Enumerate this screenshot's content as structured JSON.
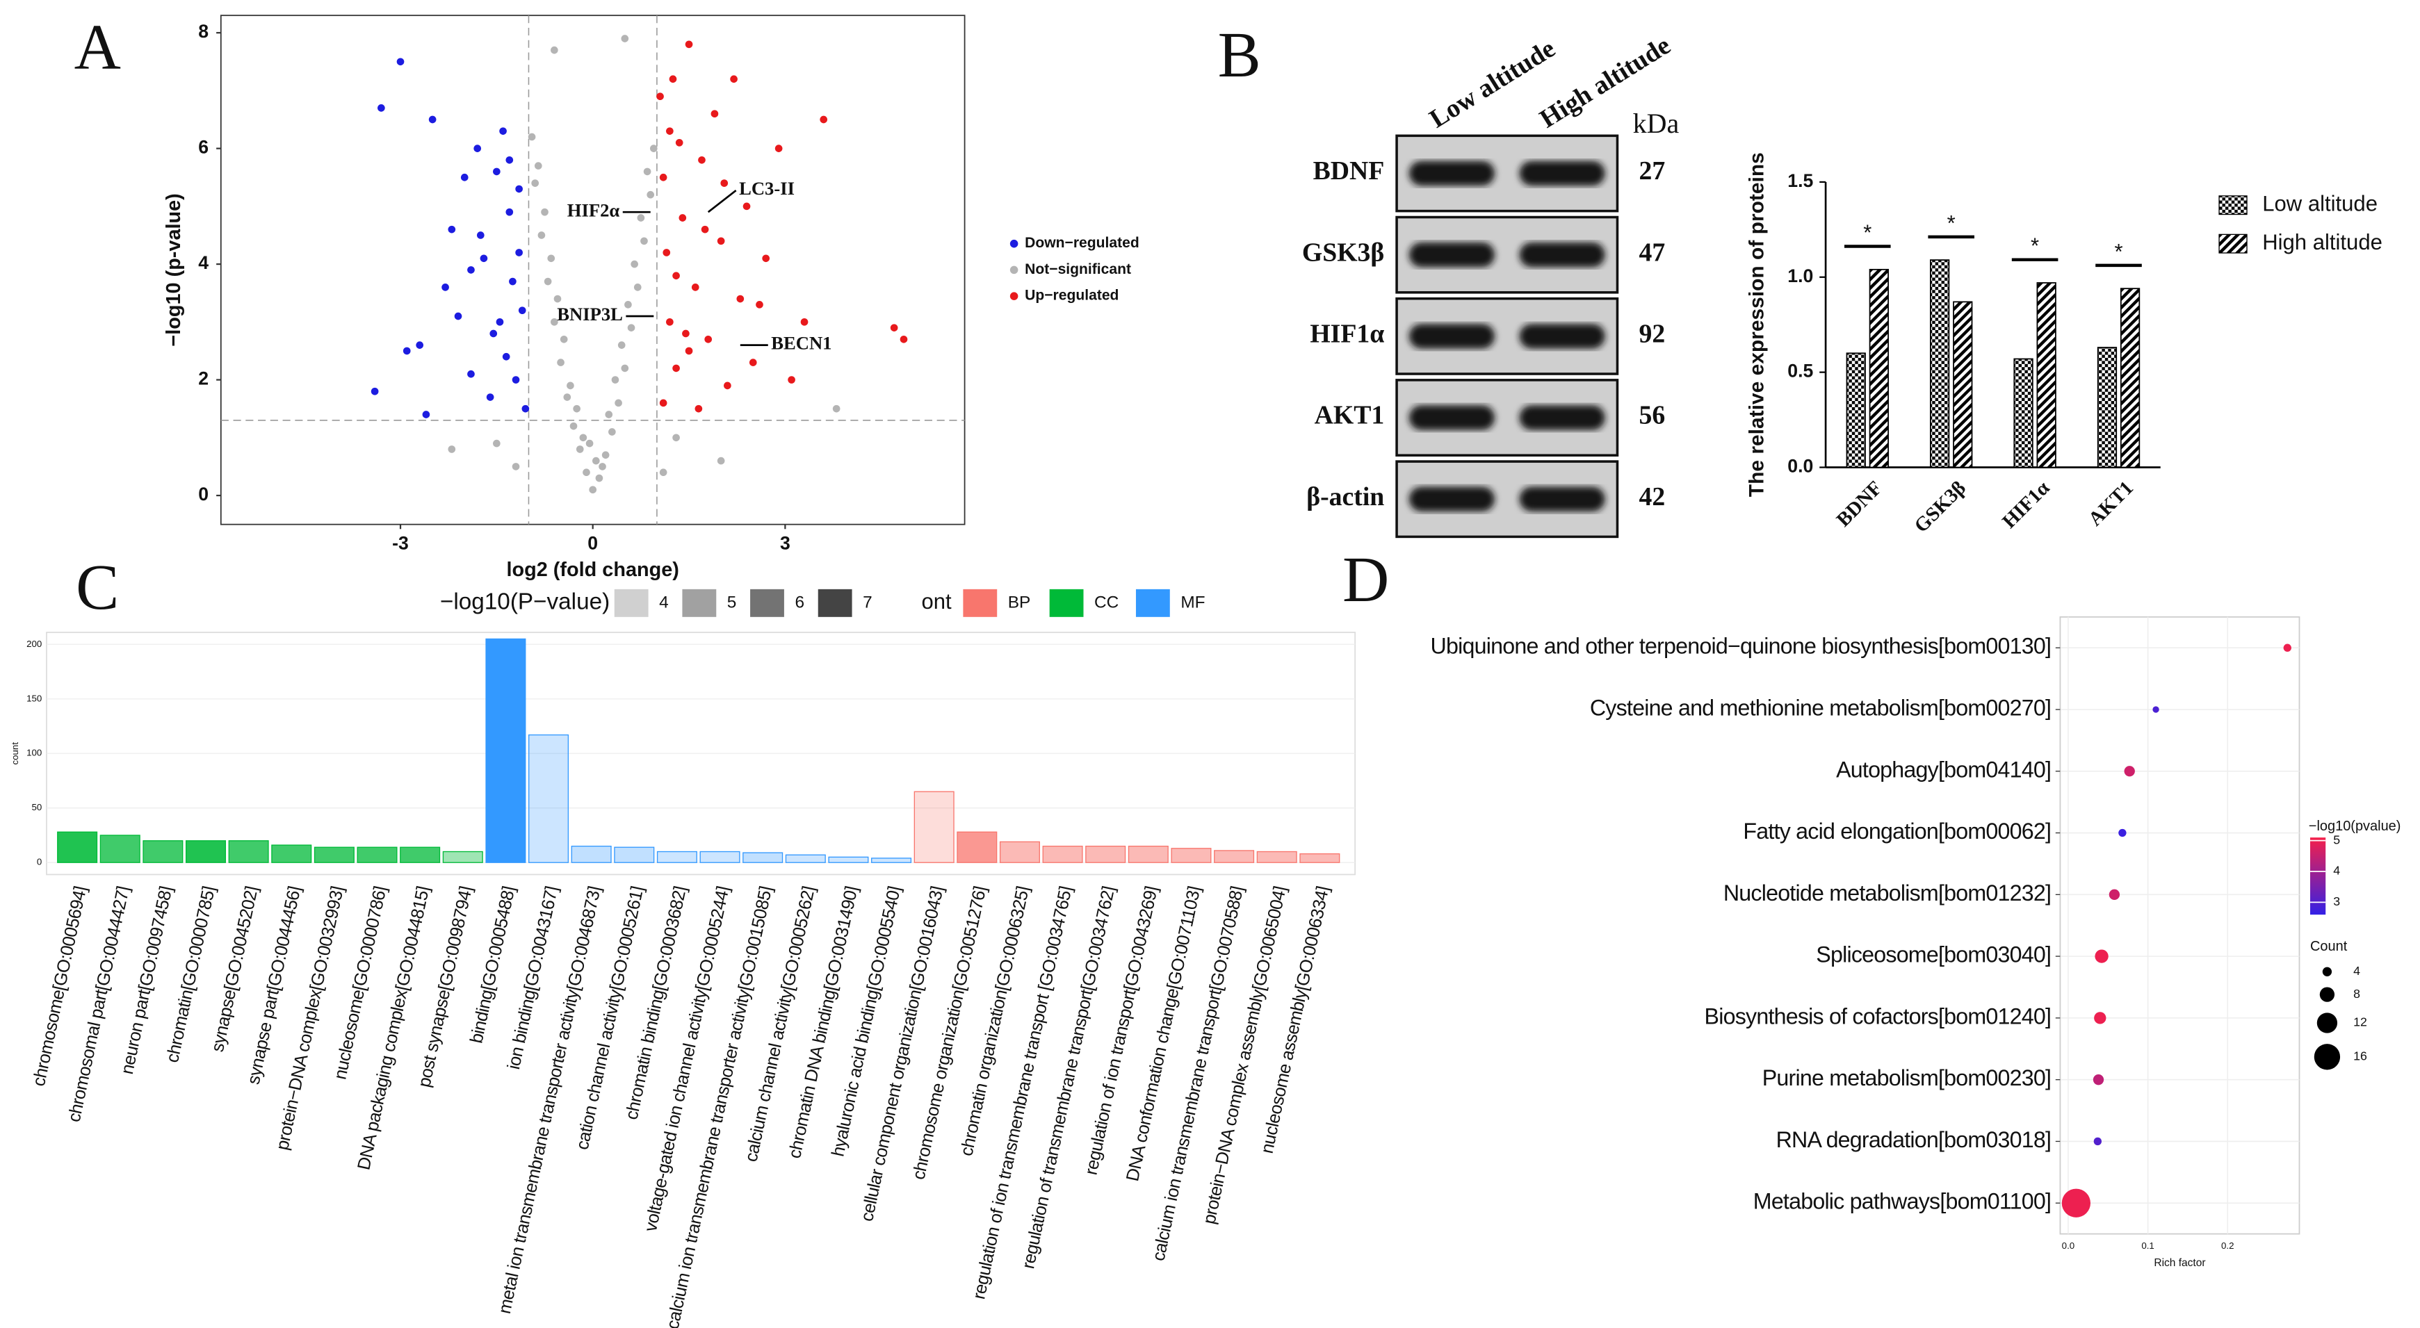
{
  "chart_data": [
    {
      "type": "scatter",
      "panel_label": "A",
      "xlabel": "log2 (fold change)",
      "ylabel": "−log10 (p-value)",
      "xlim": [
        -5.8,
        5.8
      ],
      "ylim": [
        -0.5,
        8.3
      ],
      "xticks": [
        -3,
        0,
        3
      ],
      "yticks": [
        0,
        2,
        4,
        6,
        8
      ],
      "vlines": [
        -1,
        1
      ],
      "hlines": [
        1.3
      ],
      "series": [
        {
          "name": "Down−regulated",
          "color": "#1c1ce0",
          "x": [
            -3.3,
            -3.0,
            -2.7,
            -2.5,
            -2.3,
            -2.2,
            -2.0,
            -1.9,
            -1.8,
            -1.7,
            -1.6,
            -1.5,
            -1.45,
            -1.4,
            -1.35,
            -1.3,
            -1.25,
            -1.2,
            -1.15,
            -1.1,
            -1.05,
            -2.9,
            -2.1,
            -1.75,
            -1.55,
            -1.3,
            -1.15,
            -3.4,
            -2.6,
            -1.9
          ],
          "y": [
            6.7,
            7.5,
            2.6,
            6.5,
            3.6,
            4.6,
            5.5,
            2.1,
            6.0,
            4.1,
            1.7,
            5.6,
            3.0,
            6.3,
            2.4,
            4.9,
            3.7,
            2.0,
            5.3,
            3.2,
            1.5,
            2.5,
            3.1,
            4.5,
            2.8,
            5.8,
            4.2,
            1.8,
            1.4,
            3.9
          ]
        },
        {
          "name": "Not−significant",
          "color": "#b4b4b4",
          "x": [
            0,
            0.1,
            -0.1,
            0.2,
            -0.2,
            0.3,
            -0.3,
            0.4,
            -0.4,
            0.5,
            -0.5,
            0.6,
            -0.6,
            0.7,
            -0.7,
            0.8,
            -0.8,
            0.9,
            -0.9,
            0.95,
            -0.95,
            0.05,
            -0.05,
            0.15,
            -0.15,
            0.25,
            -0.25,
            0.35,
            -0.35,
            0.45,
            -0.45,
            0.55,
            -0.55,
            0.65,
            -0.65,
            0.75,
            -0.75,
            0.85,
            -0.85,
            0.5,
            -0.6,
            1.3,
            -1.5,
            2.0,
            -2.2,
            3.8,
            1.1,
            -1.2
          ],
          "y": [
            0.1,
            0.3,
            0.4,
            0.7,
            0.8,
            1.1,
            1.2,
            1.6,
            1.7,
            2.2,
            2.3,
            2.9,
            3.0,
            3.6,
            3.7,
            4.4,
            4.5,
            5.2,
            5.4,
            6.0,
            6.2,
            0.6,
            0.9,
            0.5,
            1.0,
            1.4,
            1.5,
            2.0,
            1.9,
            2.6,
            2.7,
            3.3,
            3.4,
            4.0,
            4.1,
            4.8,
            4.9,
            5.6,
            5.7,
            7.9,
            7.7,
            1.0,
            0.9,
            0.6,
            0.8,
            1.5,
            0.4,
            0.5
          ]
        },
        {
          "name": "Up−regulated",
          "color": "#e8191c",
          "x": [
            1.05,
            1.1,
            1.15,
            1.2,
            1.25,
            1.3,
            1.35,
            1.4,
            1.5,
            1.6,
            1.7,
            1.8,
            1.9,
            2.0,
            2.1,
            2.2,
            2.3,
            2.4,
            2.5,
            2.7,
            2.9,
            3.1,
            3.3,
            3.6,
            4.7,
            4.85,
            1.1,
            1.3,
            1.5,
            1.75,
            2.05,
            2.6,
            1.2,
            1.45,
            1.65
          ],
          "y": [
            6.9,
            5.5,
            4.2,
            3.0,
            7.2,
            2.2,
            6.1,
            4.8,
            7.8,
            3.6,
            5.8,
            2.7,
            6.6,
            4.4,
            1.9,
            7.2,
            3.4,
            5.0,
            2.3,
            4.1,
            6.0,
            2.0,
            3.0,
            6.5,
            2.9,
            2.7,
            1.6,
            3.8,
            2.5,
            4.6,
            5.4,
            3.3,
            6.3,
            2.8,
            1.5
          ]
        }
      ],
      "annotations": [
        {
          "text": "HIF2α",
          "x": 0.9,
          "y": 4.9
        },
        {
          "text": "LC3-II",
          "x": 1.8,
          "y": 4.9
        },
        {
          "text": "BNIP3L",
          "x": 0.95,
          "y": 3.1
        },
        {
          "text": "BECN1",
          "x": 2.3,
          "y": 2.6
        }
      ]
    },
    {
      "type": "blot",
      "panel_label": "B",
      "columns": [
        "Low altitude",
        "High altitude"
      ],
      "unit_label": "kDa",
      "rows": [
        {
          "name": "BDNF",
          "kda": 27
        },
        {
          "name": "GSK3β",
          "kda": 47
        },
        {
          "name": "HIF1α",
          "kda": 92
        },
        {
          "name": "AKT1",
          "kda": 56
        },
        {
          "name": "β-actin",
          "kda": 42
        }
      ]
    },
    {
      "type": "bar",
      "ylabel": "The relative expression of proteins",
      "categories": [
        "BDNF",
        "GSK3β",
        "HIF1α",
        "AKT1"
      ],
      "series": [
        {
          "name": "Low altitude",
          "pattern": "checker",
          "color": "#000000",
          "values": [
            0.6,
            1.09,
            0.57,
            0.63
          ]
        },
        {
          "name": "High altitude",
          "pattern": "hatch",
          "color": "#000000",
          "values": [
            1.04,
            0.87,
            0.97,
            0.94
          ]
        }
      ],
      "significance": [
        "*",
        "*",
        "*",
        "*"
      ],
      "ylim": [
        0,
        1.5
      ],
      "yticks": [
        {
          "value": 0,
          "label": "0.0"
        },
        0.5,
        {
          "value": 1,
          "label": "1.0"
        },
        1.5
      ]
    },
    {
      "type": "bar",
      "panel_label": "C",
      "ylabel": "count",
      "categories": [
        "chromosome[GO:0005694]",
        "chromosomal part[GO:0044427]",
        "neuron part[GO:0097458]",
        "chromatin[GO:0000785]",
        "synapse[GO:0045202]",
        "synapse part[GO:0044456]",
        "protein−DNA complex[GO:0032993]",
        "nucleosome[GO:0000786]",
        "DNA packaging complex[GO:0044815]",
        "post synapse[GO:0098794]",
        "binding[GO:0005488]",
        "ion binding[GO:0043167]",
        "metal ion transmembrane transporter activity[GO:0046873]",
        "cation channel activity[GO:0005261]",
        "chromatin binding[GO:0003682]",
        "voltage-gated ion channel activity[GO:0005244]",
        "calcium ion transmembrane transporter activity[GO:0015085]",
        "calcium channel activity[GO:0005262]",
        "chromatin DNA binding[GO:0031490]",
        "hyaluronic acid binding[GO:0005540]",
        "cellular component organization[GO:0016043]",
        "chromosome organization[GO:0051276]",
        "chromatin organization[GO:0006325]",
        "regulation of ion transmembrane transport [GO:0034765]",
        "regulation of transmembrane transport[GO:0034762]",
        "regulation of ion transport[GO:0043269]",
        "DNA conformation change[GO:0071103]",
        "calcium ion transmembrane transport[GO:0070588]",
        "protein−DNA complex assembly[GO:0065004]",
        "nucleosome assembly[GO:0006334]"
      ],
      "values": [
        28,
        25,
        20,
        20,
        20,
        16,
        14,
        14,
        14,
        10,
        205,
        117,
        15,
        14,
        10,
        10,
        9,
        7,
        5,
        4,
        65,
        28,
        19,
        15,
        15,
        15,
        13,
        11,
        10,
        8
      ],
      "mlogp": [
        6.5,
        6,
        6,
        6.5,
        6,
        6,
        6,
        6,
        6,
        4.5,
        7,
        4,
        4.2,
        4.2,
        4,
        4,
        4.2,
        4,
        4,
        4,
        4,
        6,
        5,
        5,
        5,
        5,
        5,
        5,
        5,
        5
      ],
      "ont": [
        "CC",
        "CC",
        "CC",
        "CC",
        "CC",
        "CC",
        "CC",
        "CC",
        "CC",
        "CC",
        "MF",
        "MF",
        "MF",
        "MF",
        "MF",
        "MF",
        "MF",
        "MF",
        "MF",
        "MF",
        "BP",
        "BP",
        "BP",
        "BP",
        "BP",
        "BP",
        "BP",
        "BP",
        "BP",
        "BP"
      ],
      "pvalue_legend": {
        "title": "−log10(P−value)",
        "values": [
          4,
          5,
          6,
          7
        ]
      },
      "ont_legend": {
        "title": "ont",
        "items": [
          {
            "name": "BP",
            "color": "#f8766d"
          },
          {
            "name": "CC",
            "color": "#00ba38"
          },
          {
            "name": "MF",
            "color": "#3399ff"
          }
        ]
      },
      "ylim": [
        -11,
        211
      ],
      "yticks": [
        0,
        50,
        100,
        150,
        200
      ],
      "grid": true
    },
    {
      "type": "bubble",
      "panel_label": "D",
      "xlabel": "Rich factor",
      "categories": [
        "Ubiquinone and other terpenoid−quinone biosynthesis[bom00130]",
        "Cysteine and methionine metabolism[bom00270]",
        "Autophagy[bom04140]",
        "Fatty acid elongation[bom00062]",
        "Nucleotide metabolism[bom01232]",
        "Spliceosome[bom03040]",
        "Biosynthesis of cofactors[bom01240]",
        "Purine metabolism[bom00230]",
        "RNA degradation[bom03018]",
        "Metabolic pathways[bom01100]"
      ],
      "values": [
        0.275,
        0.11,
        0.077,
        0.068,
        0.058,
        0.042,
        0.04,
        0.038,
        0.037,
        0.01
      ],
      "counts": [
        3,
        2,
        5,
        3,
        5,
        7,
        6,
        5,
        3,
        18
      ],
      "neg_log10_p": [
        5.0,
        2.9,
        4.6,
        2.7,
        4.6,
        5.0,
        5.0,
        4.4,
        3.0,
        5.0
      ],
      "xlim": [
        -0.01,
        0.29
      ],
      "xticks": [
        {
          "value": 0,
          "label": "0.0"
        },
        0.1,
        0.2
      ],
      "color_legend": {
        "title": "−log10(pvalue)",
        "ticks": [
          3,
          4,
          5
        ],
        "lim": [
          2.6,
          5.1
        ],
        "colors": [
          "#3320e6",
          "#f5204a"
        ]
      },
      "count_legend": {
        "title": "Count",
        "values": [
          4,
          8,
          12,
          16
        ]
      }
    }
  ]
}
